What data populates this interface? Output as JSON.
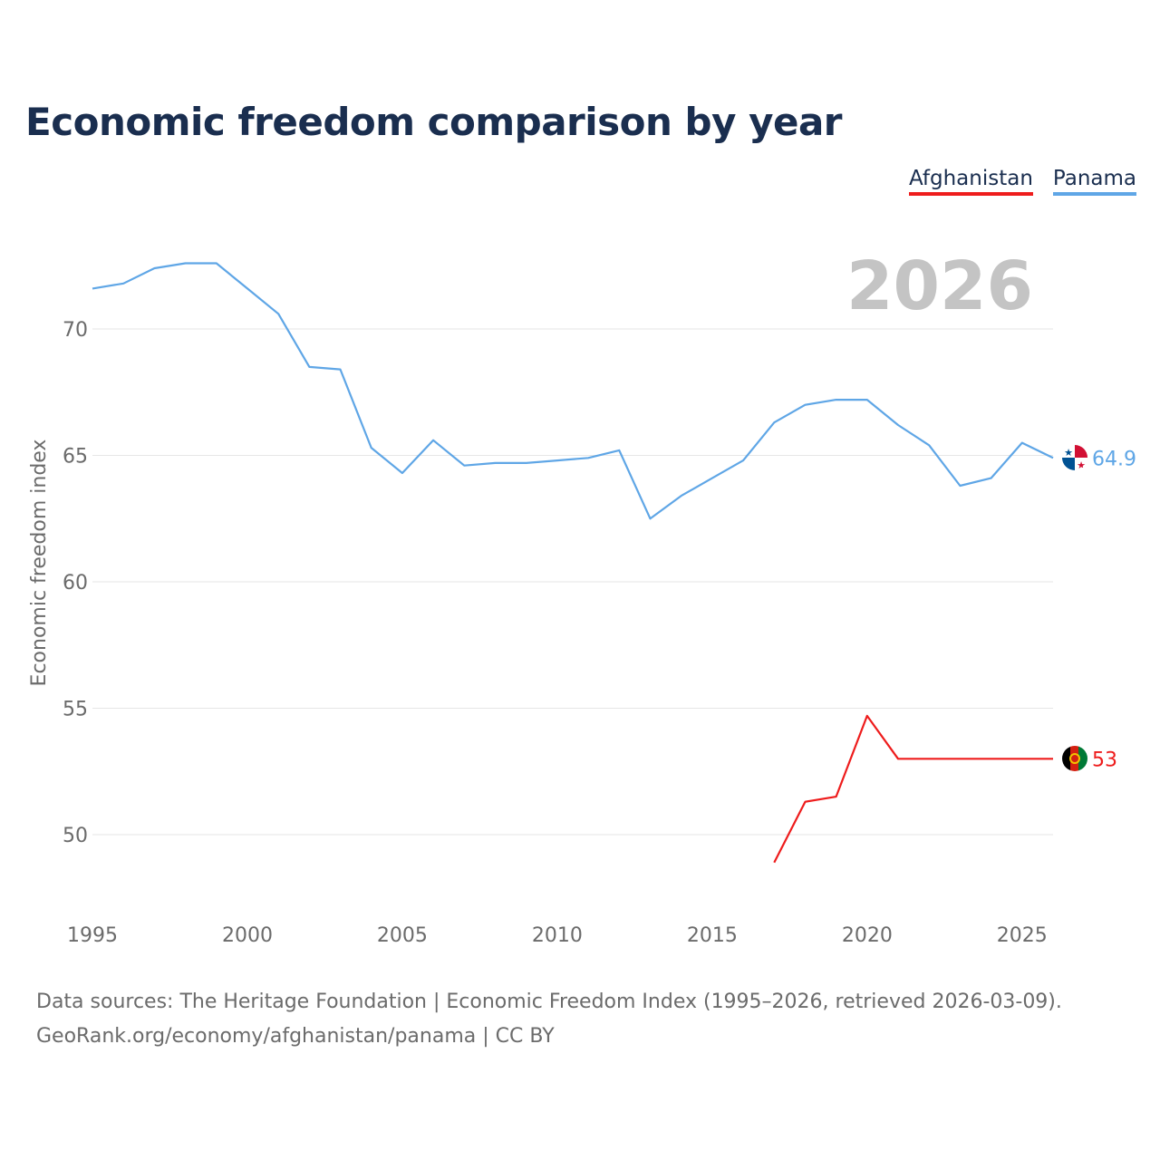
{
  "title": "Economic freedom comparison by year",
  "legend": [
    {
      "label": "Afghanistan",
      "color": "#ee1c1c"
    },
    {
      "label": "Panama",
      "color": "#5fa6e6"
    }
  ],
  "footer": {
    "line1": "Data sources: The Heritage Foundation | Economic Freedom Index (1995–2026, retrieved 2026-03-09).",
    "line2": "GeoRank.org/economy/afghanistan/panama | CC BY"
  },
  "chart_data": {
    "type": "line",
    "title": "Economic freedom comparison by year",
    "xlabel": "",
    "ylabel": "Economic freedom index",
    "xlim": [
      1995,
      2026
    ],
    "ylim": [
      47,
      73
    ],
    "x_ticks": [
      1995,
      2000,
      2005,
      2010,
      2015,
      2020,
      2025
    ],
    "y_ticks": [
      50,
      55,
      60,
      65,
      70
    ],
    "grid": true,
    "current_year_label": "2026",
    "series": [
      {
        "name": "Panama",
        "color": "#5fa6e6",
        "x": [
          1995,
          1996,
          1997,
          1998,
          1999,
          2000,
          2001,
          2002,
          2003,
          2004,
          2005,
          2006,
          2007,
          2008,
          2009,
          2010,
          2011,
          2012,
          2013,
          2014,
          2015,
          2016,
          2017,
          2018,
          2019,
          2020,
          2021,
          2022,
          2023,
          2024,
          2025,
          2026
        ],
        "values": [
          71.6,
          71.8,
          72.4,
          72.6,
          72.6,
          71.6,
          70.6,
          68.5,
          68.4,
          65.3,
          64.3,
          65.6,
          64.6,
          64.7,
          64.7,
          64.8,
          64.9,
          65.2,
          62.5,
          63.4,
          64.1,
          64.8,
          66.3,
          67.0,
          67.2,
          67.2,
          66.2,
          65.4,
          63.8,
          64.1,
          65.5,
          64.9
        ],
        "end_label": "64.9"
      },
      {
        "name": "Afghanistan",
        "color": "#ee1c1c",
        "x": [
          2017,
          2018,
          2019,
          2020,
          2021,
          2022,
          2023,
          2024,
          2025,
          2026
        ],
        "values": [
          48.9,
          51.3,
          51.5,
          54.7,
          53.0,
          53.0,
          53.0,
          53.0,
          53.0,
          53.0
        ],
        "end_label": "53"
      }
    ]
  }
}
